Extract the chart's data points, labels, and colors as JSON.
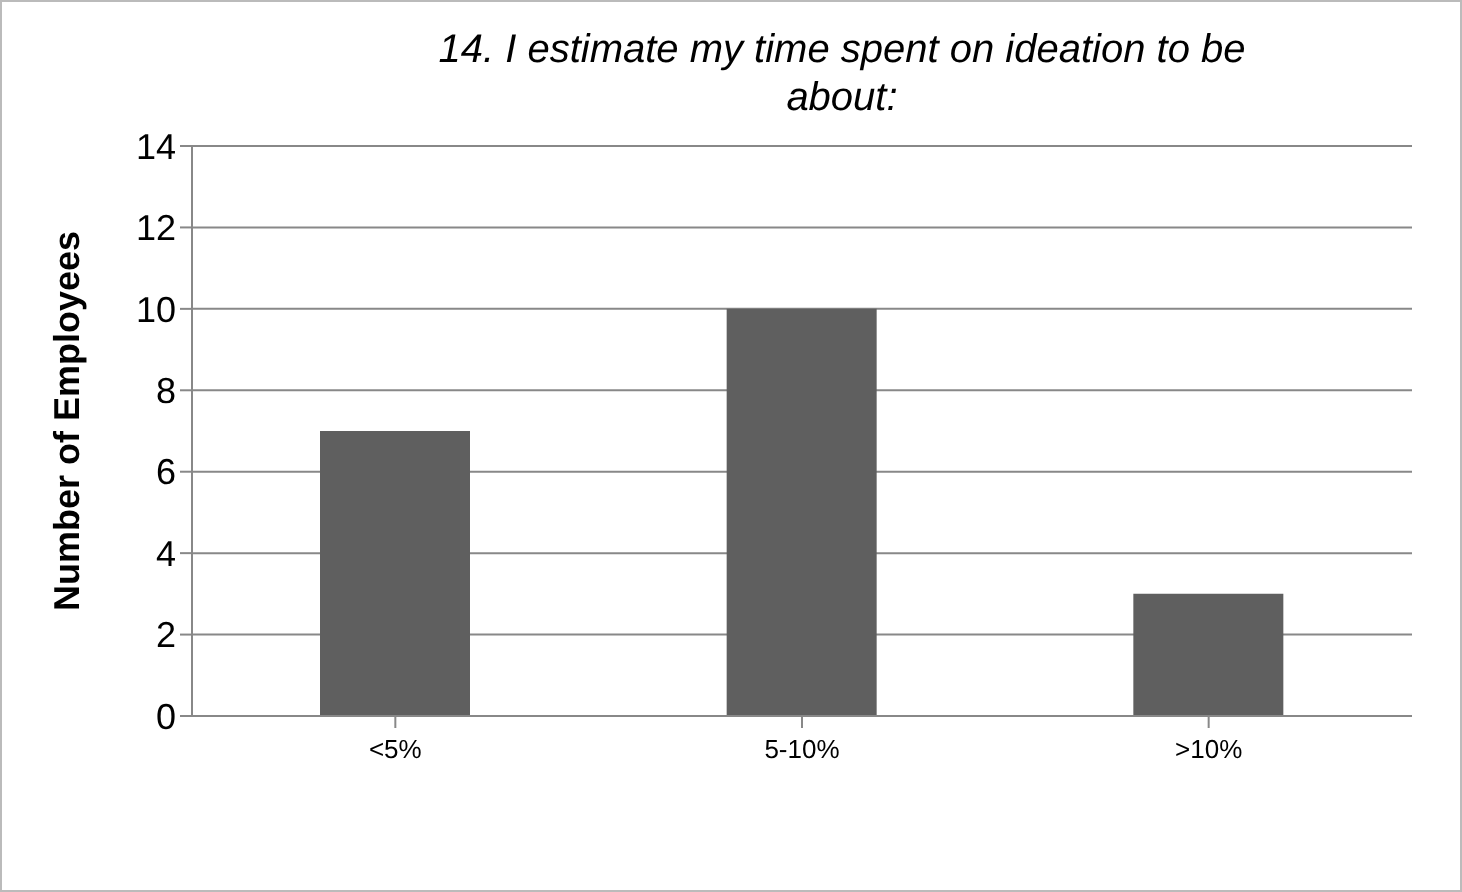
{
  "chart_data": {
    "type": "bar",
    "title": "14. I estimate my time spent on ideation to be about:",
    "ylabel": "Number of Employees",
    "categories": [
      "<5%",
      "5-10%",
      ">10%"
    ],
    "values": [
      7,
      10,
      3
    ],
    "color": "#5f5f5f",
    "ylim": [
      0,
      14
    ],
    "yticks": [
      0,
      2,
      4,
      6,
      8,
      10,
      12,
      14
    ],
    "grid": "y",
    "legend": false
  }
}
